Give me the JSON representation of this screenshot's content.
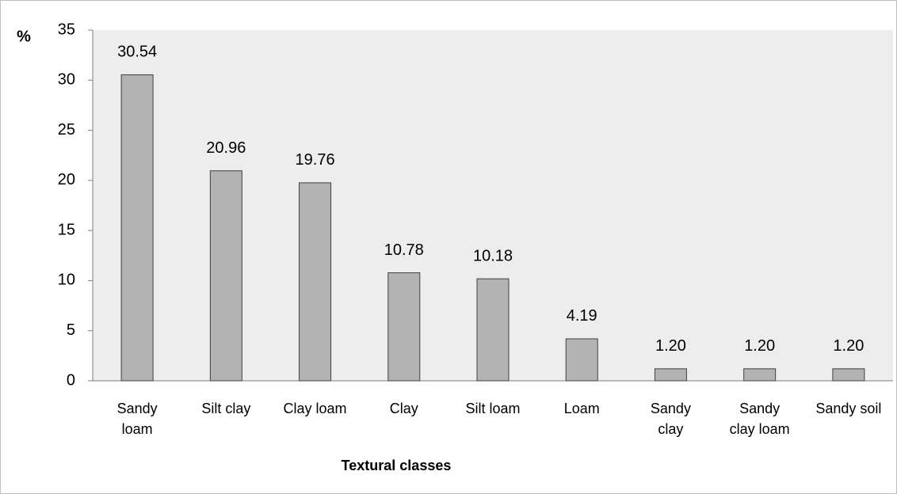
{
  "chart_data": {
    "type": "bar",
    "y_label": "%",
    "x_label": "Textural classes",
    "categories": [
      "Sandy loam",
      "Silt clay",
      "Clay loam",
      "Clay",
      "Silt loam",
      "Loam",
      "Sandy clay",
      "Sandy clay loam",
      "Sandy soil"
    ],
    "values": [
      30.54,
      20.96,
      19.76,
      10.78,
      10.18,
      4.19,
      1.2,
      1.2,
      1.2
    ],
    "value_labels": [
      "30.54",
      "20.96",
      "19.76",
      "10.78",
      "10.18",
      "4.19",
      "1.20",
      "1.20",
      "1.20"
    ],
    "color": "#b3b3b3",
    "ylim": [
      0,
      35
    ],
    "yticks": [
      0,
      5,
      10,
      15,
      20,
      25,
      30,
      35
    ],
    "grid": false
  }
}
